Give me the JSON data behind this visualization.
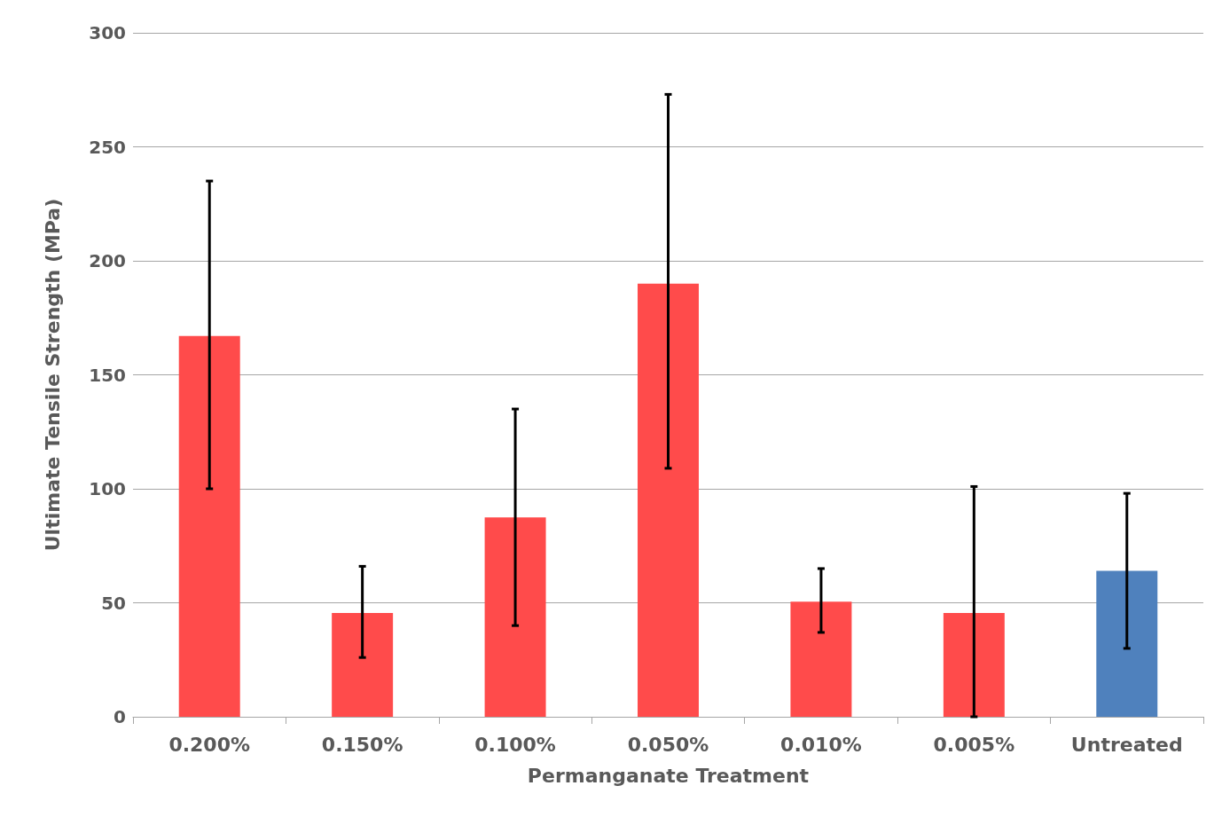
{
  "chart_data": {
    "type": "bar",
    "xlabel": "Permanganate Treatment",
    "ylabel": "Ultimate Tensile Strength (MPa)",
    "categories": [
      "0.200%",
      "0.150%",
      "0.100%",
      "0.050%",
      "0.010%",
      "0.005%",
      "Untreated"
    ],
    "values": [
      167,
      45.5,
      87.5,
      190,
      50.5,
      45.5,
      64
    ],
    "colors": [
      "#ff4b4b",
      "#ff4b4b",
      "#ff4b4b",
      "#ff4b4b",
      "#ff4b4b",
      "#ff4b4b",
      "#4f81bd"
    ],
    "errors": [
      [
        100,
        235
      ],
      [
        26,
        66
      ],
      [
        40,
        135
      ],
      [
        109,
        273
      ],
      [
        37,
        65
      ],
      [
        0,
        101
      ],
      [
        30,
        98
      ]
    ],
    "ylim": [
      0,
      300
    ],
    "yticks": [
      0,
      50,
      100,
      150,
      200,
      250,
      300
    ],
    "grid": "y"
  }
}
